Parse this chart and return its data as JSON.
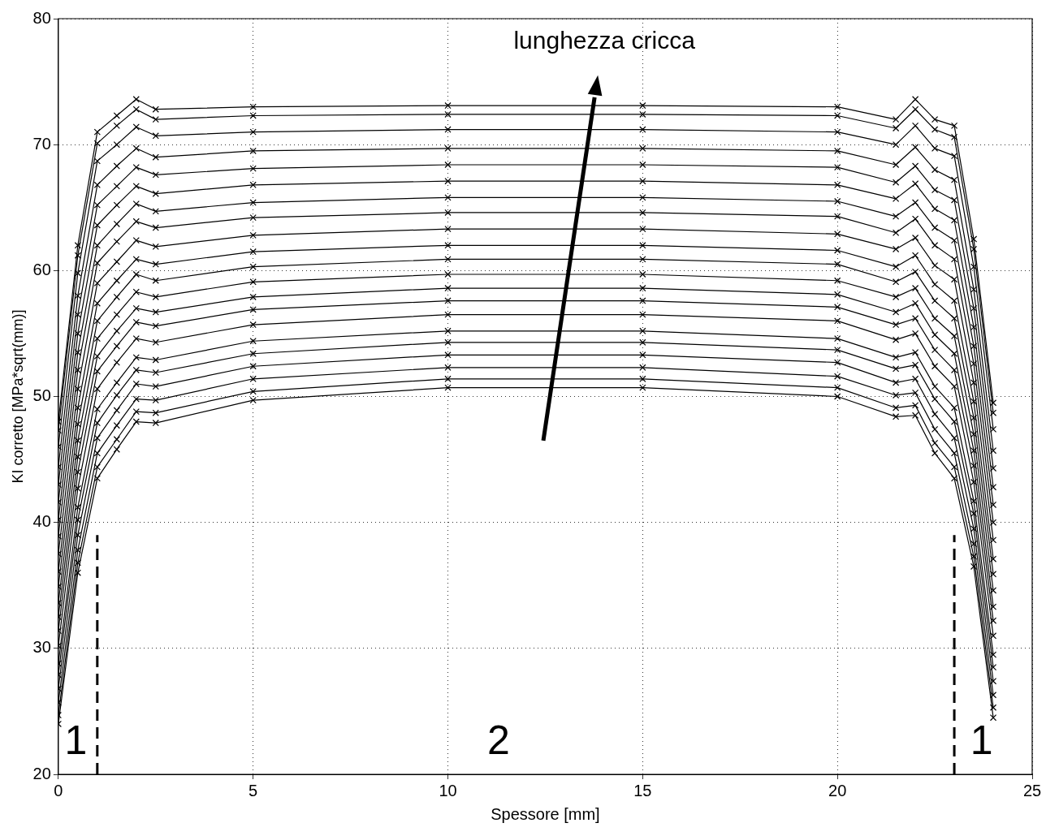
{
  "chart_data": {
    "type": "line",
    "xlabel": "Spessore [mm]",
    "ylabel": "KI corretto [MPa*sqrt(mm)]",
    "x": [
      0,
      0.5,
      1,
      1.5,
      2,
      2.5,
      5,
      10,
      15,
      20,
      21.5,
      22,
      22.5,
      23,
      23.5,
      24
    ],
    "xlim": [
      0,
      25
    ],
    "xticks": [
      0,
      5,
      10,
      15,
      20,
      25
    ],
    "ylim": [
      20,
      80
    ],
    "yticks": [
      20,
      30,
      40,
      50,
      60,
      70,
      80
    ],
    "grid": true,
    "legend": false,
    "marker": "cross",
    "line_style": "solid",
    "series": [
      {
        "color": "#000000",
        "values": [
          24,
          36,
          43.5,
          45.8,
          48.0,
          47.9,
          49.7,
          50.7,
          50.7,
          50.0,
          48.4,
          48.5,
          45.5,
          43.5,
          36.5,
          24.5
        ]
      },
      {
        "color": "#000000",
        "values": [
          24.7,
          36.8,
          44.4,
          46.6,
          48.8,
          48.7,
          50.4,
          51.4,
          51.4,
          50.7,
          49.1,
          49.3,
          46.3,
          44.4,
          37.3,
          25.3
        ]
      },
      {
        "color": "#000000",
        "values": [
          25.7,
          37.8,
          45.5,
          47.7,
          49.8,
          49.7,
          51.4,
          52.3,
          52.3,
          51.6,
          50.1,
          50.3,
          47.4,
          45.5,
          38.3,
          26.3
        ]
      },
      {
        "color": "#000000",
        "values": [
          26.8,
          39.0,
          46.7,
          48.9,
          51.0,
          50.8,
          52.4,
          53.3,
          53.3,
          52.7,
          51.1,
          51.4,
          48.6,
          46.7,
          39.5,
          27.4
        ]
      },
      {
        "color": "#000000",
        "values": [
          27.9,
          40.2,
          47.9,
          50.1,
          52.1,
          51.9,
          53.4,
          54.3,
          54.3,
          53.7,
          52.2,
          52.5,
          49.8,
          48.0,
          40.7,
          28.5
        ]
      },
      {
        "color": "#000000",
        "values": [
          28.8,
          41.2,
          49.0,
          51.1,
          53.1,
          52.9,
          54.4,
          55.2,
          55.2,
          54.6,
          53.1,
          53.5,
          50.8,
          49.1,
          41.7,
          29.5
        ]
      },
      {
        "color": "#000000",
        "values": [
          30.2,
          42.7,
          50.6,
          52.7,
          54.6,
          54.3,
          55.7,
          56.5,
          56.5,
          56.0,
          54.5,
          55.0,
          52.4,
          50.8,
          43.2,
          31.0
        ]
      },
      {
        "color": "#000000",
        "values": [
          31.4,
          44.0,
          52.0,
          54.0,
          55.9,
          55.6,
          56.9,
          57.6,
          57.6,
          57.1,
          55.7,
          56.2,
          53.7,
          52.1,
          44.5,
          32.2
        ]
      },
      {
        "color": "#000000",
        "values": [
          32.5,
          45.2,
          53.2,
          55.2,
          57.0,
          56.7,
          57.9,
          58.6,
          58.6,
          58.1,
          56.7,
          57.4,
          54.9,
          53.4,
          45.7,
          33.3
        ]
      },
      {
        "color": "#000000",
        "values": [
          33.6,
          46.5,
          54.6,
          56.5,
          58.3,
          57.9,
          59.1,
          59.7,
          59.7,
          59.2,
          57.9,
          58.6,
          56.2,
          54.8,
          47.0,
          34.6
        ]
      },
      {
        "color": "#000000",
        "values": [
          34.9,
          47.8,
          56.0,
          57.9,
          59.7,
          59.2,
          60.3,
          60.9,
          60.9,
          60.5,
          59.1,
          59.9,
          57.6,
          56.2,
          48.3,
          35.9
        ]
      },
      {
        "color": "#000000",
        "values": [
          36.1,
          49.1,
          57.4,
          59.2,
          60.9,
          60.5,
          61.5,
          62.0,
          62.0,
          61.6,
          60.3,
          61.2,
          58.9,
          57.6,
          49.6,
          37.1
        ]
      },
      {
        "color": "#000000",
        "values": [
          37.5,
          50.6,
          59.0,
          60.7,
          62.4,
          61.9,
          62.8,
          63.3,
          63.3,
          62.9,
          61.7,
          62.6,
          60.4,
          59.3,
          51.1,
          38.6
        ]
      },
      {
        "color": "#000000",
        "values": [
          38.9,
          52.1,
          60.6,
          62.3,
          63.9,
          63.4,
          64.2,
          64.6,
          64.6,
          64.3,
          63.0,
          64.1,
          62.0,
          60.9,
          52.6,
          40.0
        ]
      },
      {
        "color": "#000000",
        "values": [
          40.2,
          53.5,
          62.0,
          63.7,
          65.3,
          64.7,
          65.4,
          65.8,
          65.8,
          65.5,
          64.3,
          65.4,
          63.4,
          62.4,
          54.0,
          41.4
        ]
      },
      {
        "color": "#000000",
        "values": [
          41.6,
          55.0,
          63.6,
          65.2,
          66.7,
          66.1,
          66.8,
          67.1,
          67.1,
          66.8,
          65.7,
          66.9,
          64.9,
          64.0,
          55.5,
          42.8
        ]
      },
      {
        "color": "#000000",
        "values": [
          43.0,
          56.5,
          65.2,
          66.7,
          68.2,
          67.6,
          68.1,
          68.4,
          68.4,
          68.2,
          67.0,
          68.3,
          66.4,
          65.6,
          57.0,
          44.3
        ]
      },
      {
        "color": "#000000",
        "values": [
          44.4,
          58.0,
          66.8,
          68.3,
          69.7,
          69.0,
          69.5,
          69.7,
          69.7,
          69.5,
          68.4,
          69.8,
          68.0,
          67.2,
          58.5,
          45.7
        ]
      },
      {
        "color": "#000000",
        "values": [
          46.0,
          59.8,
          68.7,
          70.0,
          71.4,
          70.7,
          71.0,
          71.2,
          71.2,
          71.0,
          70.0,
          71.5,
          69.7,
          69.1,
          60.3,
          47.4
        ]
      },
      {
        "color": "#000000",
        "values": [
          47.3,
          61.2,
          70.1,
          71.5,
          72.8,
          72.0,
          72.3,
          72.4,
          72.4,
          72.3,
          71.3,
          72.8,
          71.2,
          70.6,
          61.7,
          48.7
        ]
      },
      {
        "color": "#000000",
        "values": [
          48.0,
          62.0,
          71.0,
          72.3,
          73.6,
          72.8,
          73.0,
          73.1,
          73.1,
          73.0,
          72.0,
          73.6,
          72.0,
          71.5,
          62.5,
          49.5
        ]
      }
    ],
    "ref_lines": [
      {
        "axis": "x",
        "value": 1,
        "line_style": "dashed",
        "color": "#000000"
      },
      {
        "axis": "x",
        "value": 23,
        "line_style": "dashed",
        "color": "#000000"
      }
    ],
    "annotations": [
      "lunghezza cricca",
      "1",
      "2",
      "1"
    ]
  }
}
